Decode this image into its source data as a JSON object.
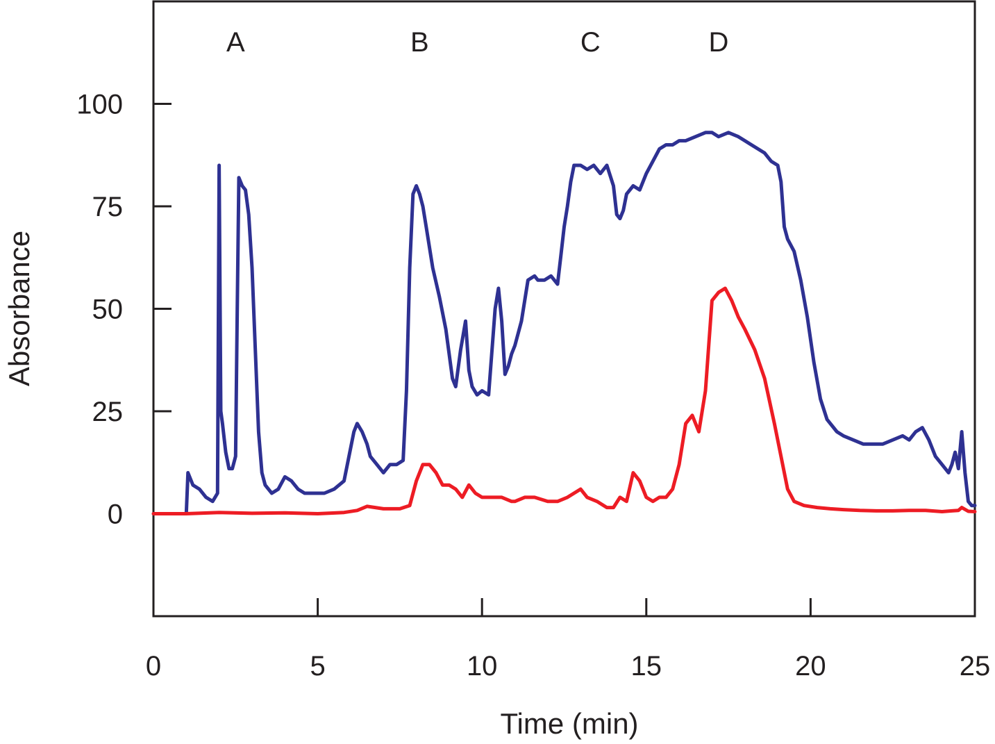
{
  "chart_data": {
    "type": "line",
    "title": "",
    "xlabel": "Time (min)",
    "ylabel": "Absorbance",
    "xlim": [
      0,
      25
    ],
    "ylim": [
      -25,
      125
    ],
    "xticks": [
      0,
      5,
      10,
      15,
      20,
      25
    ],
    "yticks": [
      0,
      25,
      50,
      75,
      100
    ],
    "grid": false,
    "region_labels": [
      {
        "text": "A",
        "x": 2.5
      },
      {
        "text": "B",
        "x": 8.1
      },
      {
        "text": "C",
        "x": 13.3
      },
      {
        "text": "D",
        "x": 17.2
      }
    ],
    "series": [
      {
        "name": "blue-trace",
        "color": "#2e3192",
        "x": [
          0,
          1.0,
          1.05,
          1.2,
          1.4,
          1.6,
          1.8,
          1.95,
          2.0,
          2.05,
          2.1,
          2.2,
          2.3,
          2.4,
          2.5,
          2.55,
          2.6,
          2.7,
          2.8,
          2.9,
          3.0,
          3.1,
          3.2,
          3.3,
          3.4,
          3.5,
          3.6,
          3.8,
          4.0,
          4.2,
          4.4,
          4.6,
          4.8,
          5.0,
          5.2,
          5.5,
          5.8,
          6.1,
          6.2,
          6.35,
          6.5,
          6.6,
          6.8,
          7.0,
          7.2,
          7.4,
          7.6,
          7.7,
          7.8,
          7.9,
          8.0,
          8.1,
          8.2,
          8.3,
          8.5,
          8.7,
          8.9,
          9.1,
          9.2,
          9.35,
          9.5,
          9.6,
          9.7,
          9.85,
          10.0,
          10.2,
          10.4,
          10.5,
          10.6,
          10.7,
          10.8,
          10.9,
          11.0,
          11.2,
          11.4,
          11.6,
          11.7,
          11.9,
          12.1,
          12.3,
          12.4,
          12.5,
          12.6,
          12.7,
          12.8,
          12.9,
          13.0,
          13.2,
          13.4,
          13.6,
          13.8,
          14.0,
          14.1,
          14.2,
          14.3,
          14.4,
          14.6,
          14.8,
          15.0,
          15.2,
          15.4,
          15.6,
          15.8,
          16.0,
          16.2,
          16.5,
          16.8,
          17.0,
          17.2,
          17.5,
          17.8,
          18.0,
          18.2,
          18.4,
          18.6,
          18.8,
          19.0,
          19.1,
          19.2,
          19.3,
          19.5,
          19.7,
          19.9,
          20.1,
          20.3,
          20.5,
          20.8,
          21.0,
          21.3,
          21.6,
          21.9,
          22.2,
          22.5,
          22.8,
          23.0,
          23.2,
          23.4,
          23.6,
          23.8,
          24.0,
          24.2,
          24.3,
          24.4,
          24.5,
          24.6,
          24.7,
          24.8,
          24.9,
          25.0
        ],
        "y": [
          0,
          0,
          10,
          7,
          6,
          4,
          3,
          5,
          85,
          25,
          22,
          15,
          11,
          11,
          14,
          50,
          82,
          80,
          79,
          73,
          60,
          40,
          20,
          10,
          7,
          6,
          5,
          6,
          9,
          8,
          6,
          5,
          5,
          5,
          5,
          6,
          8,
          20,
          22,
          20,
          17,
          14,
          12,
          10,
          12,
          12,
          13,
          30,
          60,
          78,
          80,
          78,
          75,
          70,
          60,
          53,
          45,
          33,
          31,
          40,
          47,
          35,
          31,
          29,
          30,
          29,
          50,
          55,
          47,
          34,
          36,
          39,
          41,
          47,
          57,
          58,
          57,
          57,
          58,
          56,
          63,
          70,
          75,
          81,
          85,
          85,
          85,
          84,
          85,
          83,
          85,
          80,
          73,
          72,
          74,
          78,
          80,
          79,
          83,
          86,
          89,
          90,
          90,
          91,
          91,
          92,
          93,
          93,
          92,
          93,
          92,
          91,
          90,
          89,
          88,
          86,
          85,
          81,
          70,
          67,
          64,
          57,
          48,
          37,
          28,
          23,
          20,
          19,
          18,
          17,
          17,
          17,
          18,
          19,
          18,
          20,
          21,
          18,
          14,
          12,
          10,
          12,
          15,
          11,
          20,
          10,
          3,
          2,
          2
        ]
      },
      {
        "name": "red-trace",
        "color": "#ed1c24",
        "x": [
          0,
          1.0,
          2.0,
          3.0,
          4.0,
          5.0,
          5.8,
          6.2,
          6.5,
          7.0,
          7.5,
          7.8,
          8.0,
          8.2,
          8.4,
          8.6,
          8.8,
          9.0,
          9.2,
          9.4,
          9.6,
          9.8,
          10.0,
          10.3,
          10.6,
          10.9,
          11.0,
          11.3,
          11.6,
          12.0,
          12.3,
          12.6,
          12.8,
          13.0,
          13.2,
          13.5,
          13.8,
          14.0,
          14.2,
          14.4,
          14.6,
          14.8,
          15.0,
          15.2,
          15.4,
          15.6,
          15.8,
          16.0,
          16.2,
          16.4,
          16.6,
          16.8,
          17.0,
          17.2,
          17.4,
          17.6,
          17.8,
          18.0,
          18.3,
          18.6,
          18.9,
          19.1,
          19.3,
          19.5,
          19.8,
          20.2,
          20.6,
          21.0,
          21.5,
          22.0,
          22.5,
          23.0,
          23.5,
          24.0,
          24.3,
          24.5,
          24.6,
          24.8,
          25.0
        ],
        "y": [
          0,
          0,
          0.3,
          0.1,
          0.2,
          0,
          0.3,
          0.8,
          1.8,
          1.2,
          1.2,
          2,
          8,
          12,
          12,
          10,
          7,
          7,
          6,
          4,
          7,
          5,
          4,
          4,
          4,
          3,
          3,
          4,
          4,
          3,
          3,
          4,
          5,
          6,
          4,
          3,
          1.5,
          1.5,
          4,
          3,
          10,
          8,
          4,
          3,
          4,
          4,
          6,
          12,
          22,
          24,
          20,
          30,
          52,
          54,
          55,
          52,
          48,
          45,
          40,
          33,
          22,
          14,
          6,
          3,
          2,
          1.5,
          1.2,
          1,
          0.8,
          0.7,
          0.7,
          0.8,
          0.8,
          0.5,
          0.7,
          0.8,
          1.5,
          0.6,
          0.5
        ]
      }
    ]
  }
}
